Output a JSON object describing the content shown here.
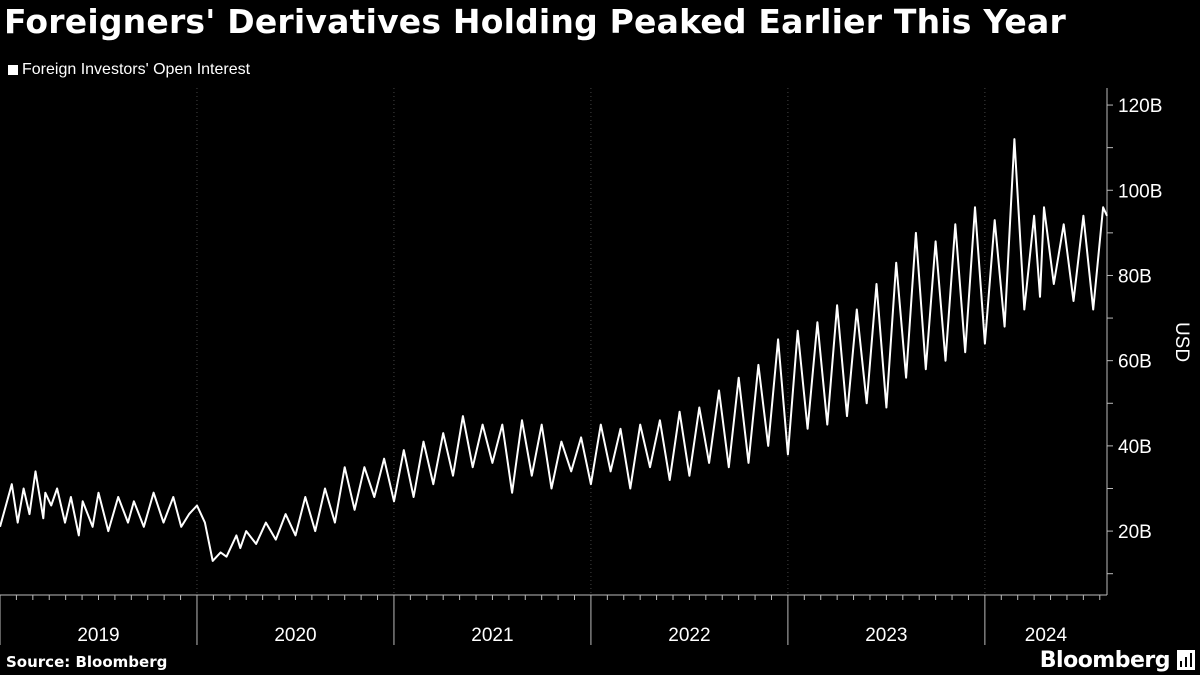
{
  "title": "Foreigners' Derivatives Holding Peaked Earlier This Year",
  "footer": {
    "source": "Source: Bloomberg",
    "brand": "Bloomberg"
  },
  "colors": {
    "background": "#000000",
    "series": "#ffffff",
    "grid": "#444444"
  },
  "chart_data": {
    "type": "line",
    "title": "Foreigners' Derivatives Holding Peaked Earlier This Year",
    "xlabel": "",
    "ylabel": "USD",
    "ylim": [
      5,
      124
    ],
    "y_ticks": [
      20,
      40,
      60,
      80,
      100,
      120
    ],
    "y_tick_labels": [
      "20B",
      "40B",
      "60B",
      "80B",
      "100B",
      "120B"
    ],
    "x_range": [
      2019.0,
      2024.62
    ],
    "year_labels": [
      "2019",
      "2020",
      "2021",
      "2022",
      "2023",
      "2024"
    ],
    "legend": {
      "position": "top-left",
      "entries": [
        "Foreign Investors' Open Interest"
      ]
    },
    "grid": true,
    "series": [
      {
        "name": "Foreign Investors' Open Interest",
        "x": [
          2019.0,
          2019.06,
          2019.09,
          2019.12,
          2019.15,
          2019.18,
          2019.22,
          2019.23,
          2019.26,
          2019.29,
          2019.33,
          2019.36,
          2019.4,
          2019.42,
          2019.47,
          2019.5,
          2019.55,
          2019.6,
          2019.65,
          2019.68,
          2019.73,
          2019.78,
          2019.83,
          2019.88,
          2019.92,
          2019.96,
          2020.0,
          2020.04,
          2020.08,
          2020.12,
          2020.15,
          2020.2,
          2020.22,
          2020.25,
          2020.3,
          2020.35,
          2020.4,
          2020.45,
          2020.5,
          2020.55,
          2020.6,
          2020.65,
          2020.7,
          2020.75,
          2020.8,
          2020.85,
          2020.9,
          2020.95,
          2021.0,
          2021.05,
          2021.1,
          2021.15,
          2021.2,
          2021.25,
          2021.3,
          2021.35,
          2021.4,
          2021.45,
          2021.5,
          2021.55,
          2021.6,
          2021.65,
          2021.7,
          2021.75,
          2021.8,
          2021.85,
          2021.9,
          2021.95,
          2022.0,
          2022.05,
          2022.1,
          2022.15,
          2022.2,
          2022.25,
          2022.3,
          2022.35,
          2022.4,
          2022.45,
          2022.5,
          2022.55,
          2022.6,
          2022.65,
          2022.7,
          2022.75,
          2022.8,
          2022.85,
          2022.9,
          2022.95,
          2023.0,
          2023.05,
          2023.1,
          2023.15,
          2023.2,
          2023.25,
          2023.3,
          2023.35,
          2023.4,
          2023.45,
          2023.5,
          2023.55,
          2023.6,
          2023.65,
          2023.7,
          2023.75,
          2023.8,
          2023.85,
          2023.9,
          2023.95,
          2024.0,
          2024.05,
          2024.1,
          2024.15,
          2024.2,
          2024.25,
          2024.28,
          2024.3,
          2024.35,
          2024.4,
          2024.45,
          2024.5,
          2024.55,
          2024.6,
          2024.62
        ],
        "values": [
          21,
          31,
          22,
          30,
          24,
          34,
          23,
          29,
          26,
          30,
          22,
          28,
          19,
          27,
          21,
          29,
          20,
          28,
          22,
          27,
          21,
          29,
          22,
          28,
          21,
          24,
          26,
          22,
          13,
          15,
          14,
          19,
          16,
          20,
          17,
          22,
          18,
          24,
          19,
          28,
          20,
          30,
          22,
          35,
          25,
          35,
          28,
          37,
          27,
          39,
          28,
          41,
          31,
          43,
          33,
          47,
          35,
          45,
          36,
          45,
          29,
          46,
          33,
          45,
          30,
          41,
          34,
          42,
          31,
          45,
          34,
          44,
          30,
          45,
          35,
          46,
          32,
          48,
          33,
          49,
          36,
          53,
          35,
          56,
          36,
          59,
          40,
          65,
          38,
          67,
          44,
          69,
          45,
          73,
          47,
          72,
          50,
          78,
          49,
          83,
          56,
          90,
          58,
          88,
          60,
          92,
          62,
          96,
          64,
          93,
          68,
          112,
          72,
          94,
          75,
          96,
          78,
          92,
          74,
          94,
          72,
          96,
          94
        ]
      }
    ]
  }
}
